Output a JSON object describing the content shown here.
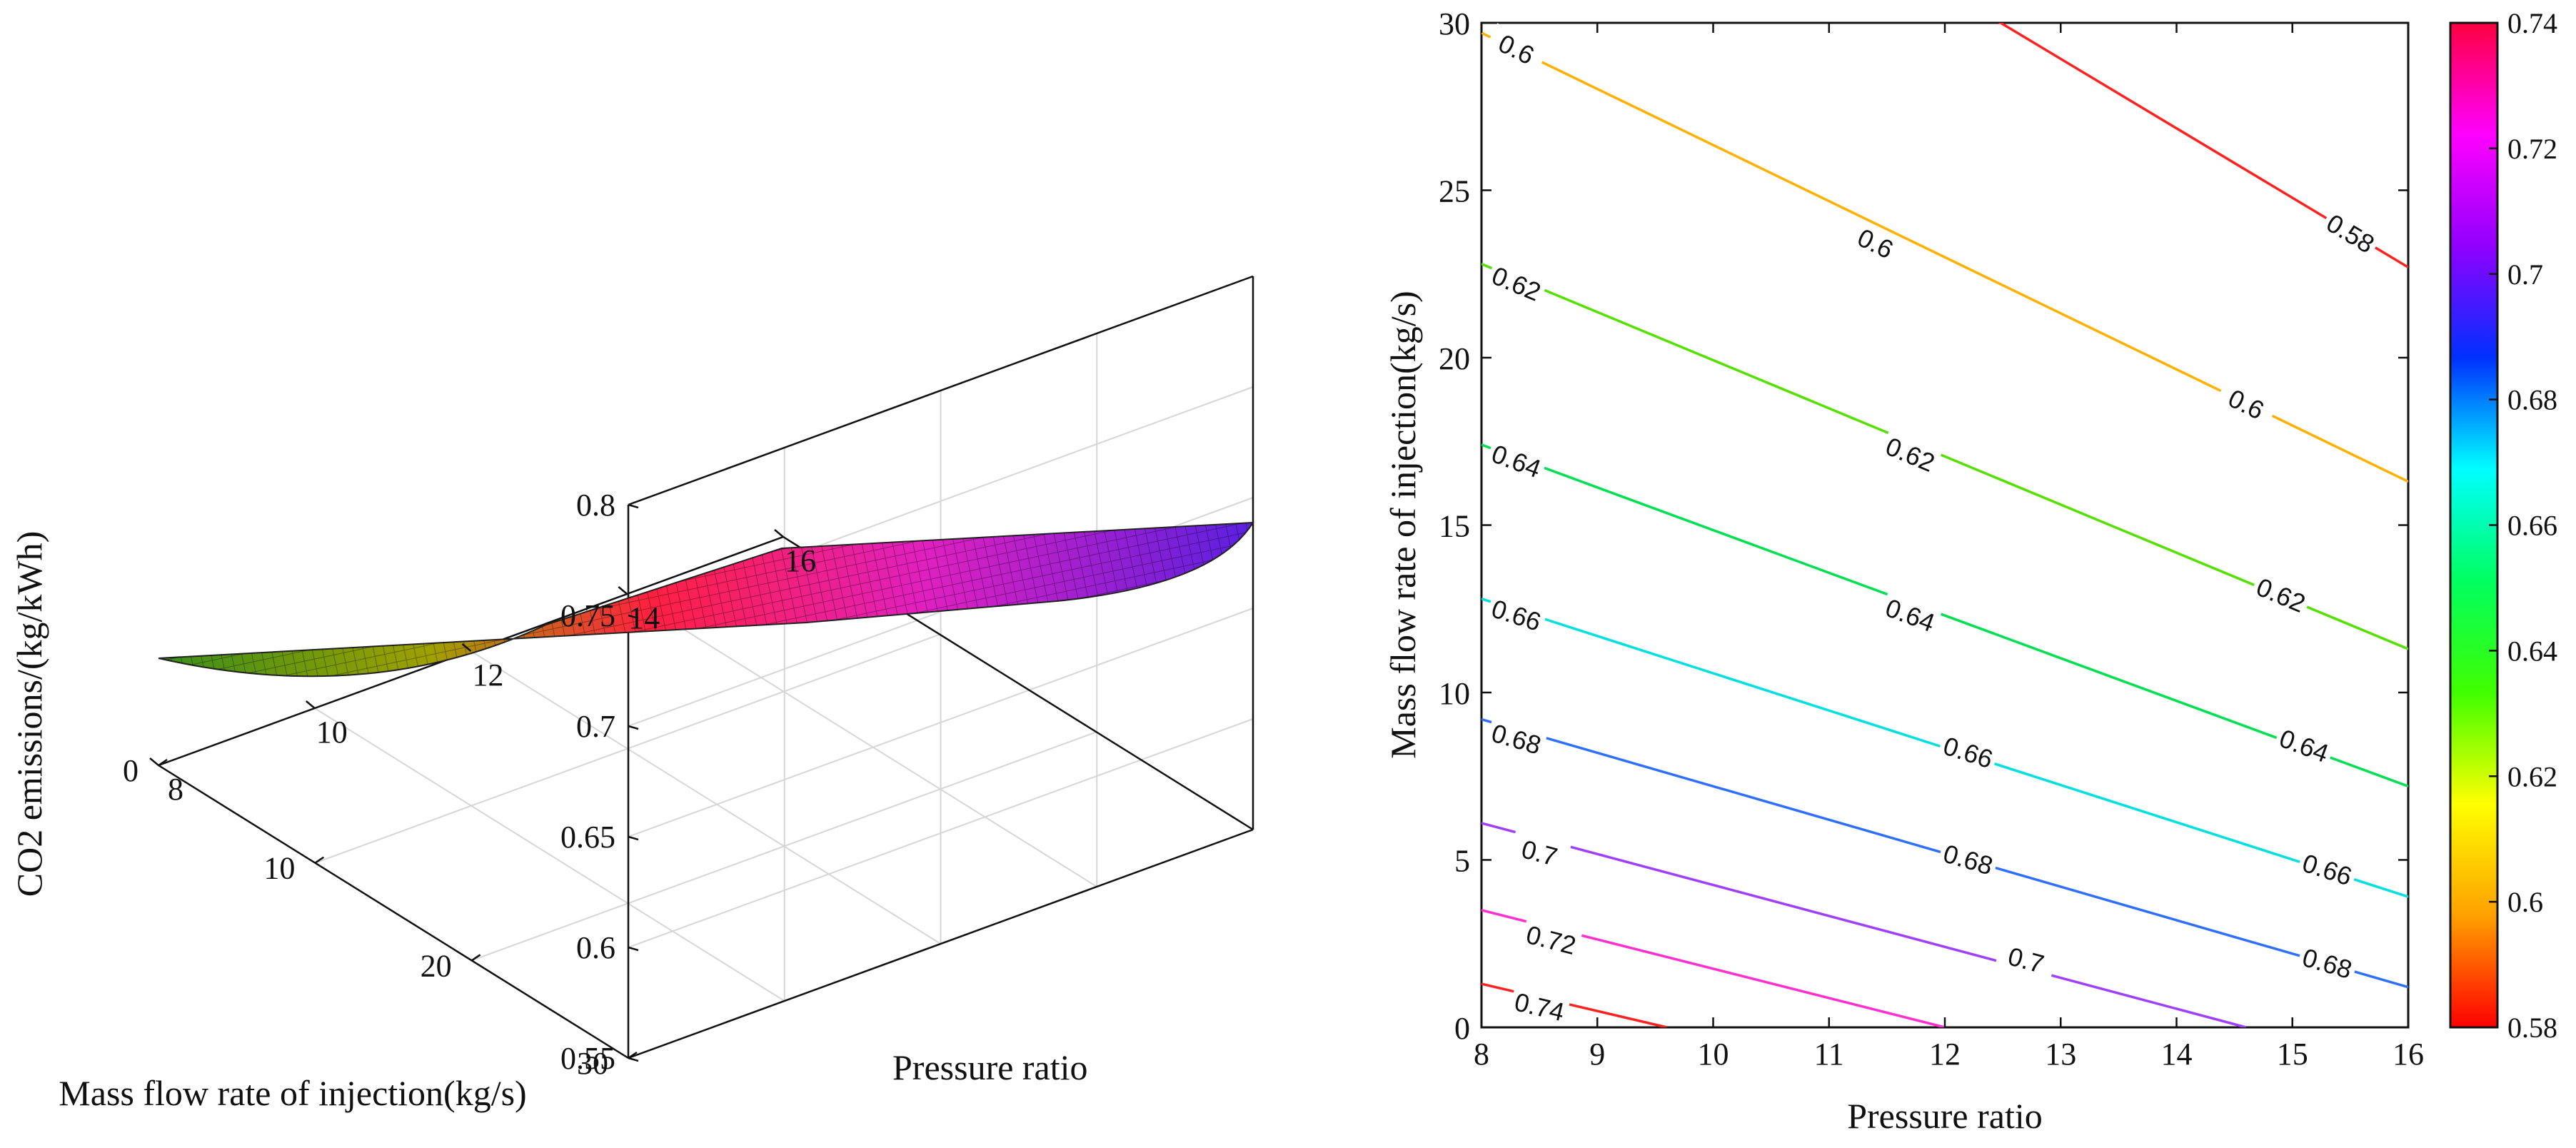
{
  "chart_data": [
    {
      "type": "surface3d",
      "title": "",
      "xlabel": "Pressure ratio",
      "ylabel": "Mass flow rate of injection(kg/s)",
      "zlabel": "CO2 emissions/(kg/kWh)",
      "xlim": [
        8,
        16
      ],
      "ylim": [
        0,
        30
      ],
      "zlim": [
        0.55,
        0.8
      ],
      "x_ticks": [
        "8",
        "10",
        "12",
        "14",
        "16"
      ],
      "y_ticks": [
        "0",
        "10",
        "20",
        "30"
      ],
      "z_ticks": [
        "0.55",
        "0.6",
        "0.65",
        "0.7",
        "0.75",
        "0.8"
      ],
      "surface_corners": [
        {
          "pressure_ratio": 8,
          "mass_flow": 0,
          "co2": 0.745
        },
        {
          "pressure_ratio": 16,
          "mass_flow": 0,
          "co2": 0.665
        },
        {
          "pressure_ratio": 8,
          "mass_flow": 30,
          "co2": 0.598
        },
        {
          "pressure_ratio": 16,
          "mass_flow": 30,
          "co2": 0.555
        }
      ],
      "colormap": "hsv",
      "grid": true
    },
    {
      "type": "contour",
      "title": "",
      "xlabel": "Pressure ratio",
      "ylabel": "Mass flow rate of injection(kg/s)",
      "xlim": [
        8,
        16
      ],
      "ylim": [
        0,
        30
      ],
      "x_ticks": [
        "8",
        "9",
        "10",
        "11",
        "12",
        "13",
        "14",
        "15",
        "16"
      ],
      "y_ticks": [
        "0",
        "5",
        "10",
        "15",
        "20",
        "25",
        "30"
      ],
      "levels": [
        {
          "level": 0.58,
          "label": "0.58",
          "color": "#ff2020",
          "x": [
            12,
            16
          ],
          "y": [
            31,
            22.7
          ],
          "label_at": [
            [
              15.5,
              23.7
            ]
          ]
        },
        {
          "level": 0.6,
          "label": "0.6",
          "color": "#ffb000",
          "x": [
            8,
            16
          ],
          "y": [
            29.7,
            16.3
          ],
          "label_at": [
            [
              8.3,
              29.2
            ],
            [
              11.4,
              23.4
            ],
            [
              14.6,
              18.6
            ]
          ]
        },
        {
          "level": 0.62,
          "label": "0.62",
          "color": "#55e000",
          "x": [
            8,
            16
          ],
          "y": [
            22.8,
            11.3
          ],
          "label_at": [
            [
              8.3,
              22.2
            ],
            [
              11.7,
              17.1
            ],
            [
              14.9,
              12.9
            ]
          ]
        },
        {
          "level": 0.64,
          "label": "0.64",
          "color": "#00e050",
          "x": [
            8,
            16
          ],
          "y": [
            17.4,
            7.2
          ],
          "label_at": [
            [
              8.3,
              16.9
            ],
            [
              11.7,
              12.3
            ],
            [
              15.1,
              8.4
            ]
          ]
        },
        {
          "level": 0.66,
          "label": "0.66",
          "color": "#00e0e0",
          "x": [
            8,
            16
          ],
          "y": [
            12.8,
            3.9
          ],
          "label_at": [
            [
              8.3,
              12.3
            ],
            [
              12.2,
              8.2
            ],
            [
              15.3,
              4.7
            ]
          ]
        },
        {
          "level": 0.68,
          "label": "0.68",
          "color": "#2f6fff",
          "x": [
            8,
            16
          ],
          "y": [
            9.2,
            1.2
          ],
          "label_at": [
            [
              8.3,
              8.6
            ],
            [
              12.2,
              5.0
            ],
            [
              15.3,
              1.9
            ]
          ]
        },
        {
          "level": 0.7,
          "label": "0.7",
          "color": "#a040ff",
          "x": [
            8,
            14.6
          ],
          "y": [
            6.1,
            0
          ],
          "label_at": [
            [
              8.5,
              5.2
            ],
            [
              12.7,
              2.0
            ]
          ]
        },
        {
          "level": 0.72,
          "label": "0.72",
          "color": "#ff30d0",
          "x": [
            8,
            12
          ],
          "y": [
            3.5,
            0
          ],
          "label_at": [
            [
              8.6,
              2.6
            ]
          ]
        },
        {
          "level": 0.74,
          "label": "0.74",
          "color": "#ff2020",
          "x": [
            8,
            9.6
          ],
          "y": [
            1.3,
            0
          ],
          "label_at": [
            [
              8.5,
              0.6
            ]
          ]
        }
      ],
      "colorbar": {
        "min": 0.58,
        "max": 0.74,
        "ticks": [
          "0.58",
          "0.6",
          "0.62",
          "0.64",
          "0.66",
          "0.68",
          "0.7",
          "0.72",
          "0.74"
        ],
        "colors": [
          "#ff0000",
          "#ffa000",
          "#ffff00",
          "#40ff00",
          "#00ff60",
          "#00ffff",
          "#0030ff",
          "#9000ff",
          "#ff00ff",
          "#ff0040"
        ]
      },
      "grid": false
    }
  ]
}
